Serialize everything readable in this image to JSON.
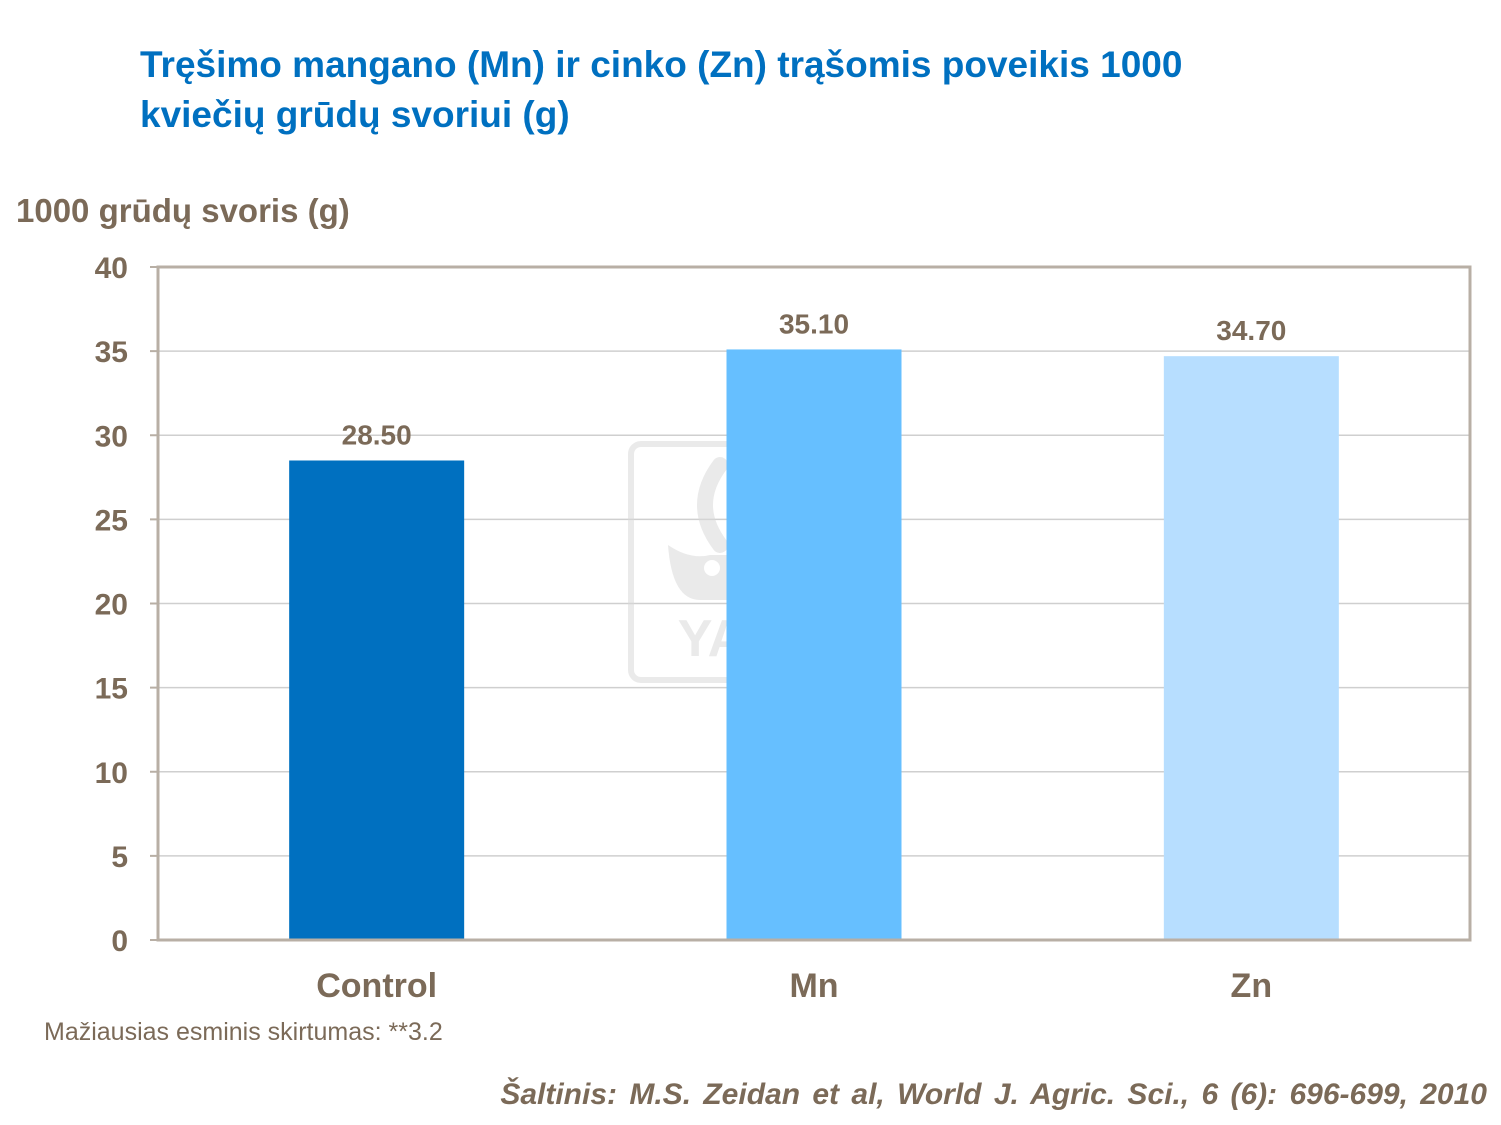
{
  "chart_data": {
    "type": "bar",
    "title_lines": [
      "Tręšimo mangano (Mn) ir cinko (Zn) trąšomis poveikis 1000",
      "kviečių grūdų svoriui (g)"
    ],
    "ylabel": "1000 grūdų svoris (g)",
    "xlabel": "",
    "categories": [
      "Control",
      "Mn",
      "Zn"
    ],
    "values": [
      28.5,
      35.1,
      34.7
    ],
    "value_labels": [
      "28.50",
      "35.10",
      "34.70"
    ],
    "colors": [
      "#0070C0",
      "#66BFFF",
      "#B7DEFF"
    ],
    "ylim": [
      0,
      40
    ],
    "yticks": [
      0,
      5,
      10,
      15,
      20,
      25,
      30,
      35,
      40
    ],
    "grid": true,
    "legend": "none"
  },
  "watermark": {
    "text": "YARA",
    "icon": "yara-viking-ship-logo"
  },
  "note": "Mažiausias esminis skirtumas: **3.2",
  "source": "Šaltinis: M.S. Zeidan et al, World J. Agric. Sci., 6 (6): 696-699, 2010"
}
